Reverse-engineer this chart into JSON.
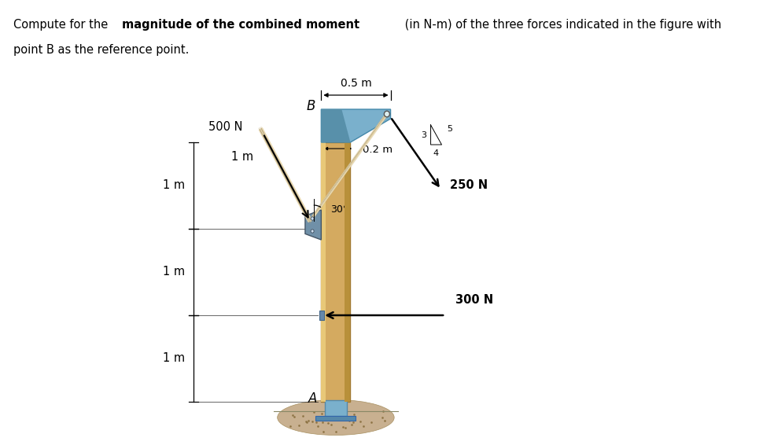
{
  "bg_color": "#ffffff",
  "column_color": "#d4aa60",
  "column_color_dark": "#b8903a",
  "column_color_light": "#e8c878",
  "bracket_color": "#7ab0cc",
  "bracket_color_dark": "#5890aa",
  "base_color": "#7ab0cc",
  "ground_color_top": "#c8b090",
  "ground_color": "#b89870",
  "bolt_color": "#888888",
  "rope_color_light": "#e8d8b0",
  "rope_color_dark": "#b8a880",
  "plate_color": "#7090a8",
  "force_500_label": "500 N",
  "force_300_label": "300 N",
  "force_250_label": "250 N",
  "angle_label": "30°",
  "dim_05_label": "0.5 m",
  "dim_02_label": "0.2 m",
  "dim_1m_labels": [
    "1 m",
    "1 m",
    "1 m"
  ],
  "label_B": "B",
  "label_A": "A",
  "ratio_label_3": "3",
  "ratio_label_4": "4",
  "ratio_label_5": "5"
}
